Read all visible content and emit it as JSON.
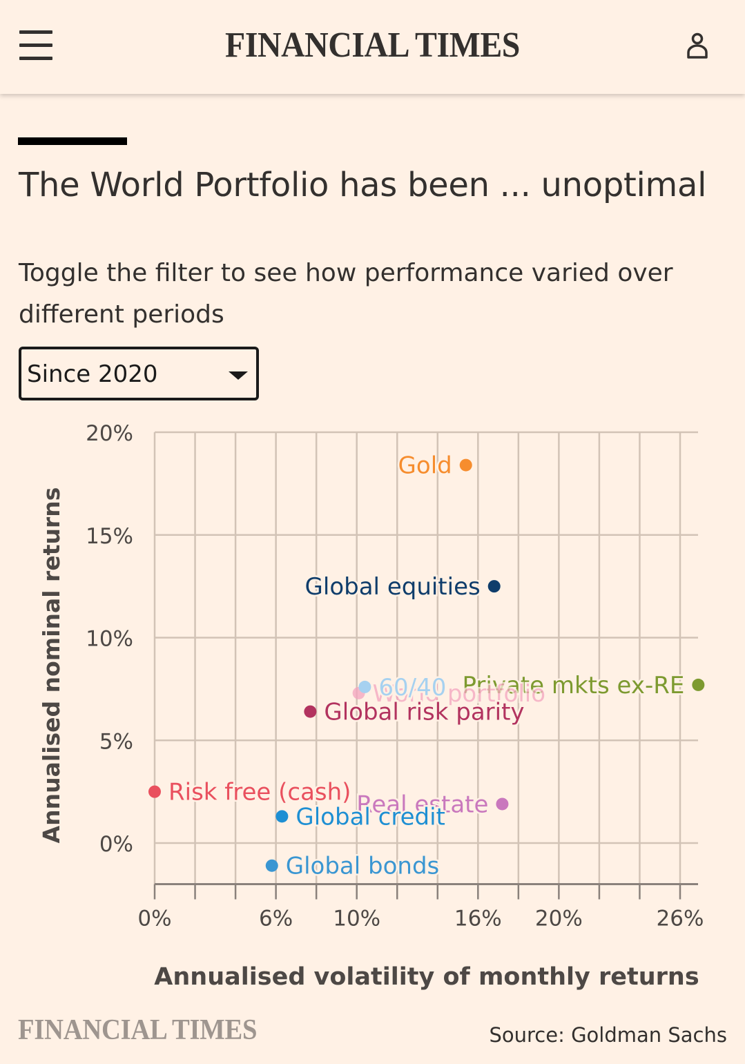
{
  "header": {
    "brand": "FINANCIAL TIMES",
    "menu_icon": "hamburger-menu-icon",
    "user_icon": "user-account-icon"
  },
  "article": {
    "title": "The World Portfolio has been ... unoptimal",
    "subtitle": "Toggle the filter to see how performance varied over different periods",
    "filter": {
      "selected": "Since 2020",
      "icon": "chevron-down-icon"
    }
  },
  "footer": {
    "brand": "FINANCIAL TIMES",
    "source": "Source: Goldman Sachs"
  },
  "chart_data": {
    "type": "scatter",
    "title": "The World Portfolio has been ... unoptimal",
    "xlabel": "Annualised volatility of monthly returns",
    "ylabel": "Annualised nominal returns",
    "xlim": [
      0,
      27
    ],
    "ylim": [
      -2,
      20
    ],
    "x_ticks": [
      0,
      6,
      10,
      16,
      20,
      26
    ],
    "x_tick_labels": [
      "0%",
      "6%",
      "10%",
      "16%",
      "20%",
      "26%"
    ],
    "x_grid_step": 2,
    "y_ticks": [
      0,
      5,
      10,
      15,
      20
    ],
    "y_tick_labels": [
      "0%",
      "5%",
      "10%",
      "15%",
      "20%"
    ],
    "grid": true,
    "points": [
      {
        "name": "Gold",
        "x": 15.4,
        "y": 18.4,
        "color": "#f68d2e",
        "label_side": "left"
      },
      {
        "name": "Global equities",
        "x": 16.8,
        "y": 12.5,
        "color": "#0f3d6b",
        "label_side": "left"
      },
      {
        "name": "Private mkts ex-RE",
        "x": 26.9,
        "y": 7.7,
        "color": "#7d9a30",
        "label_side": "left"
      },
      {
        "name": "World portfolio",
        "x": 10.1,
        "y": 7.3,
        "color": "#f4a4bf",
        "label_side": "right",
        "faded": true
      },
      {
        "name": "60/40",
        "x": 10.4,
        "y": 7.6,
        "color": "#a6d1f0",
        "label_side": "right"
      },
      {
        "name": "Global risk parity",
        "x": 7.7,
        "y": 6.4,
        "color": "#b2335f",
        "label_side": "right"
      },
      {
        "name": "Risk free (cash)",
        "x": 0.0,
        "y": 2.5,
        "color": "#e9505e",
        "label_side": "right"
      },
      {
        "name": "Real estate",
        "x": 17.2,
        "y": 1.9,
        "color": "#c978bd",
        "label_side": "left"
      },
      {
        "name": "Global credit",
        "x": 6.3,
        "y": 1.3,
        "color": "#1e8fd3",
        "label_side": "right"
      },
      {
        "name": "Global bonds",
        "x": 5.8,
        "y": -1.1,
        "color": "#3a96d2",
        "label_side": "right"
      }
    ],
    "colors": {
      "grid": "#d2c3b6",
      "axis": "#8a817b",
      "tick_text": "#4d4845",
      "label_text": "#4d4845"
    }
  }
}
